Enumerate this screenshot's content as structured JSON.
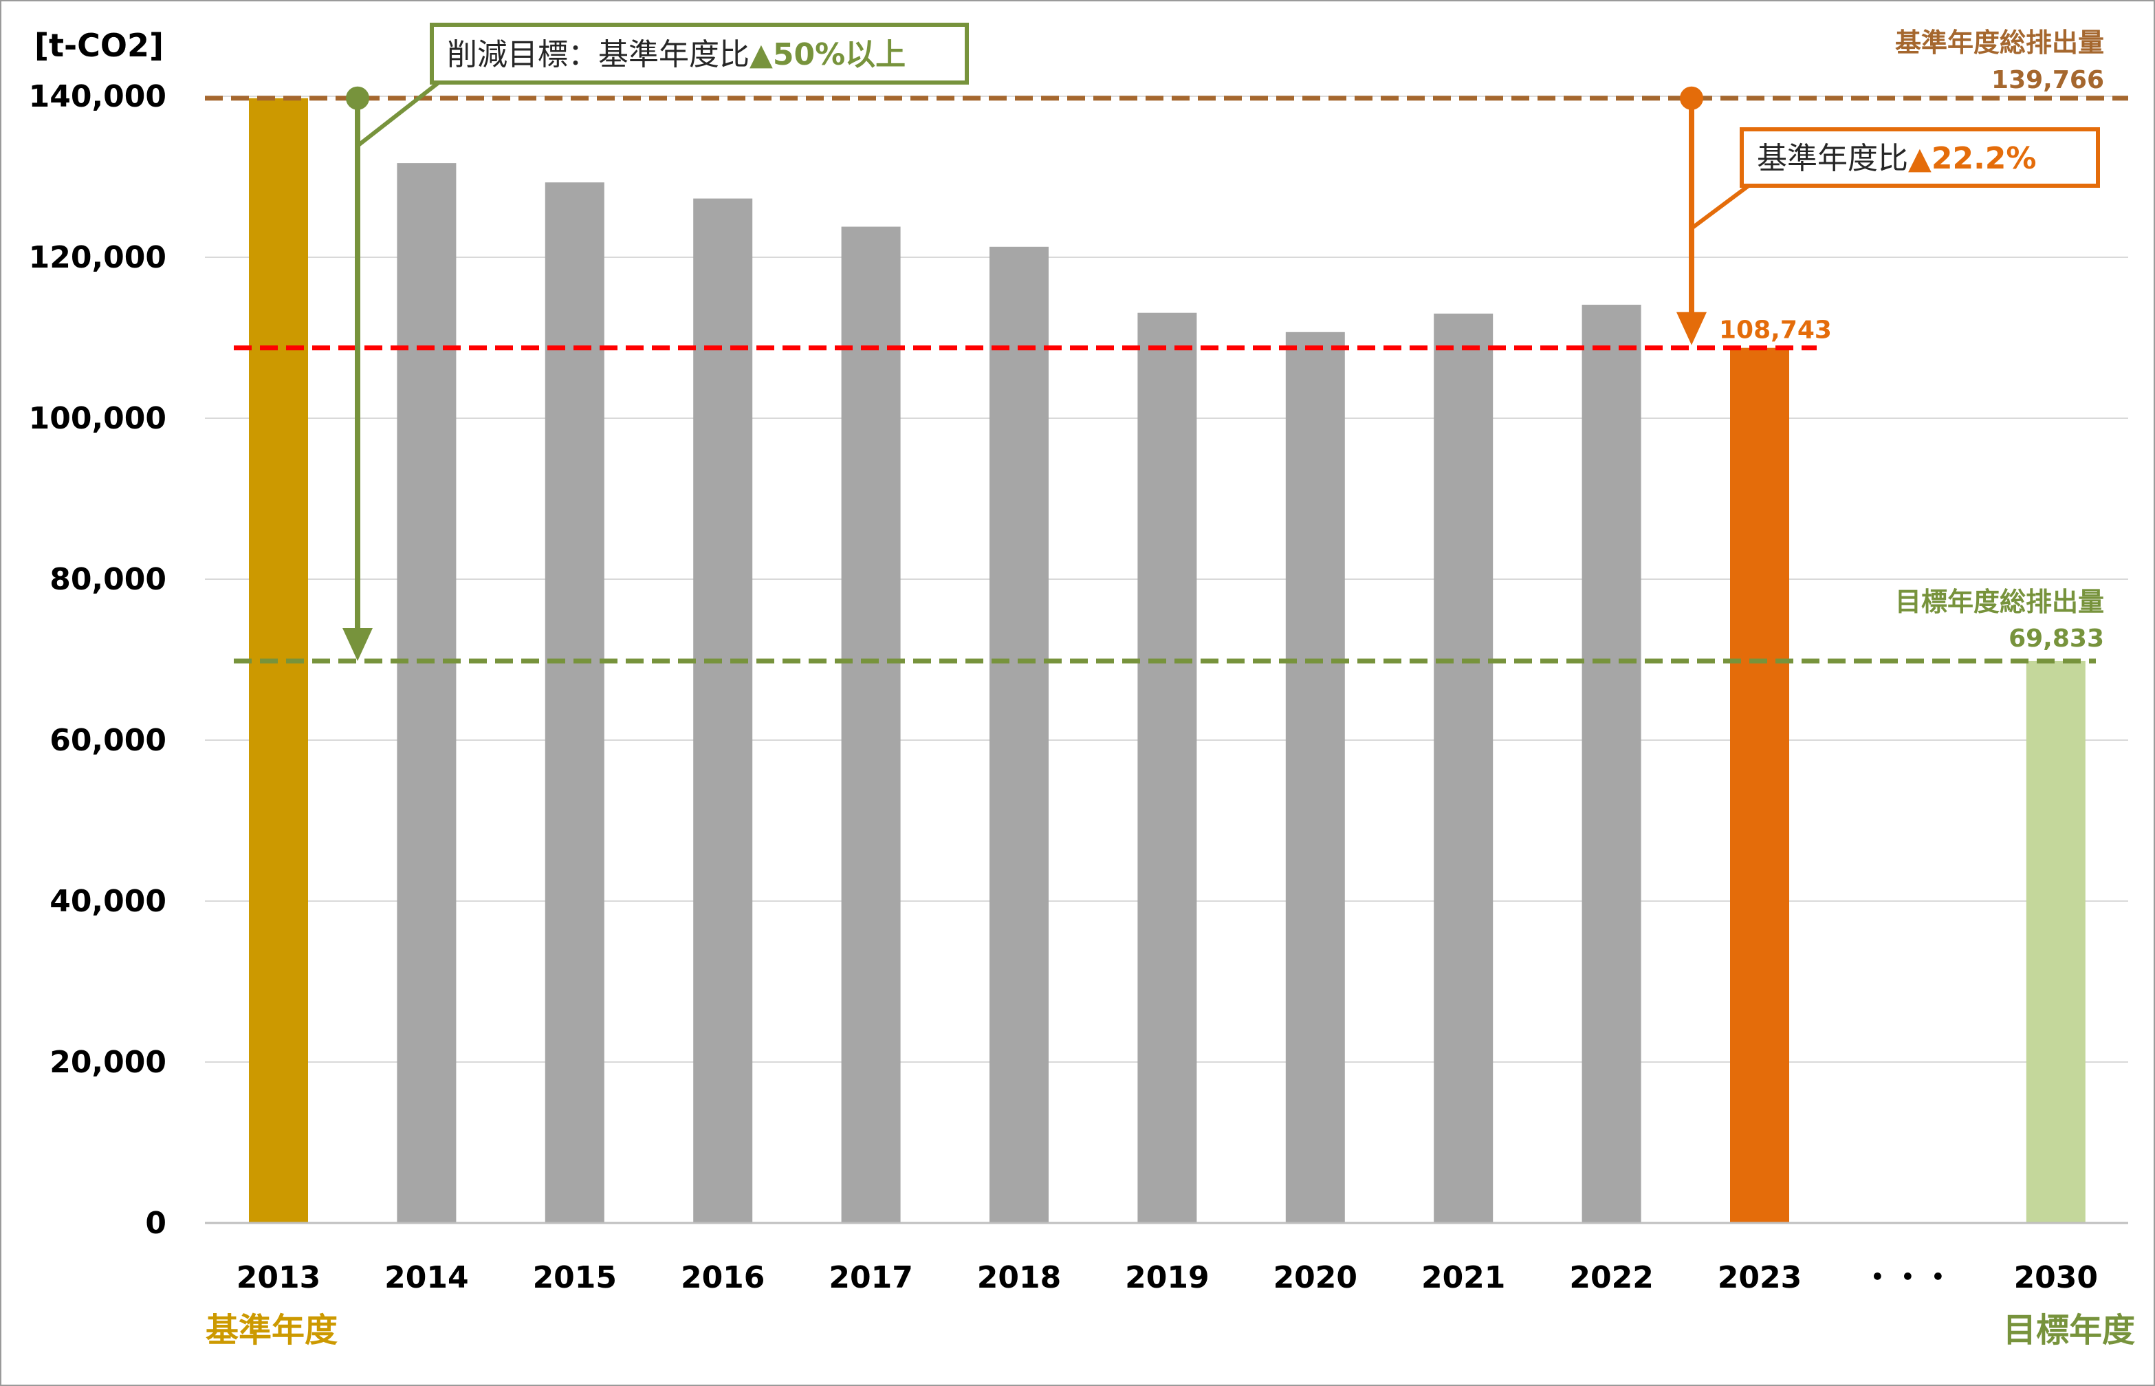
{
  "chart_data": {
    "type": "bar",
    "ylabel": "[t-CO2]",
    "ylim": [
      0,
      140000
    ],
    "yticks": [
      0,
      20000,
      40000,
      60000,
      80000,
      100000,
      120000,
      140000
    ],
    "ytick_labels": [
      "0",
      "20,000",
      "40,000",
      "60,000",
      "80,000",
      "100,000",
      "120,000",
      "140,000"
    ],
    "grid": true,
    "legend": "none",
    "categories": [
      "2013",
      "2014",
      "2015",
      "2016",
      "2017",
      "2018",
      "2019",
      "2020",
      "2021",
      "2022",
      "2023",
      "・・・",
      "2030"
    ],
    "values": [
      139766,
      131700,
      129300,
      127300,
      123800,
      121300,
      113100,
      110700,
      113000,
      114100,
      108743,
      null,
      69833
    ],
    "bar_colors": [
      "#cc9900",
      "#a6a6a6",
      "#a6a6a6",
      "#a6a6a6",
      "#a6a6a6",
      "#a6a6a6",
      "#a6a6a6",
      "#a6a6a6",
      "#a6a6a6",
      "#a6a6a6",
      "#e46c0a",
      null,
      "#c4d79b"
    ],
    "category_sublabels": [
      {
        "category": "2013",
        "text": "基準年度",
        "color": "#cc9900"
      },
      {
        "category": "2030",
        "text": "目標年度",
        "color": "#77933c"
      }
    ],
    "reference_lines": [
      {
        "value": 139766,
        "color": "#a5672e",
        "label_title": "基準年度総排出量",
        "label_value": "139,766"
      },
      {
        "value": 108743,
        "color": "#ff0000",
        "label_value": "108,743",
        "label_color": "#e46c0a"
      },
      {
        "value": 69833,
        "color": "#77933c",
        "label_title": "目標年度総排出量",
        "label_value": "69,833"
      }
    ],
    "annotations": [
      {
        "text_main": "削減目標：基準年度比",
        "text_accent": "▲50%以上",
        "color": "#77933c",
        "arrow_from": 139766,
        "arrow_to": 69833
      },
      {
        "text_main": "基準年度比",
        "text_accent": "▲22.2%",
        "color": "#e46c0a",
        "arrow_from": 139766,
        "arrow_to": 108743
      }
    ]
  }
}
